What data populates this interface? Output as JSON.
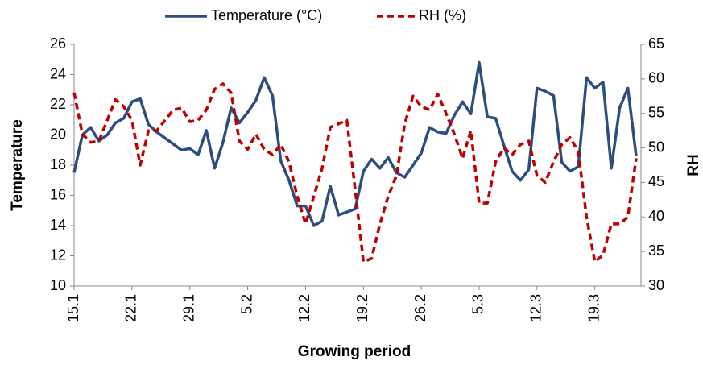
{
  "chart_data": {
    "type": "line",
    "x_label": "Growing period",
    "y_label": "Temperature",
    "y2_label": "RH",
    "categories": [
      "15.1",
      null,
      null,
      null,
      null,
      null,
      null,
      "22.1",
      null,
      null,
      null,
      null,
      null,
      null,
      "29.1",
      null,
      null,
      null,
      null,
      null,
      null,
      "5.2",
      null,
      null,
      null,
      null,
      null,
      null,
      "12.2",
      null,
      null,
      null,
      null,
      null,
      null,
      "19.2",
      null,
      null,
      null,
      null,
      null,
      null,
      "26.2",
      null,
      null,
      null,
      null,
      null,
      null,
      "5.3",
      null,
      null,
      null,
      null,
      null,
      null,
      "12.3",
      null,
      null,
      null,
      null,
      null,
      null,
      "19.3",
      null,
      null,
      null,
      null,
      null
    ],
    "ylim": [
      10,
      26
    ],
    "yticks": [
      10,
      12,
      14,
      16,
      18,
      20,
      22,
      24,
      26
    ],
    "y2lim": [
      30,
      65
    ],
    "y2ticks": [
      30,
      35,
      40,
      45,
      50,
      55,
      60,
      65
    ],
    "legend": "top",
    "series": [
      {
        "name": "Temperature (°C)",
        "color": "#2c4d7e",
        "line_style": "solid",
        "values": [
          17.5,
          20.0,
          20.5,
          19.6,
          20.0,
          20.8,
          21.1,
          22.2,
          22.4,
          20.7,
          20.2,
          19.8,
          19.4,
          19.0,
          19.1,
          18.7,
          20.3,
          17.8,
          19.5,
          21.8,
          20.8,
          21.5,
          22.3,
          23.8,
          22.6,
          18.3,
          17.0,
          15.3,
          15.3,
          14.0,
          14.3,
          16.6,
          14.7,
          14.9,
          15.1,
          17.6,
          18.4,
          17.8,
          18.5,
          17.5,
          17.2,
          18.0,
          18.8,
          20.5,
          20.2,
          20.1,
          21.3,
          22.2,
          21.4,
          24.8,
          21.2,
          21.1,
          19.3,
          17.6,
          17.0,
          17.7,
          23.1,
          22.9,
          22.6,
          18.2,
          17.6,
          17.9,
          23.8,
          23.1,
          23.5,
          17.8,
          21.8,
          23.1,
          18.6
        ]
      },
      {
        "name": "RH (%)",
        "color": "#c00000",
        "line_style": "dashed",
        "axis": "y2",
        "values": [
          58,
          52,
          50.8,
          51,
          54,
          57,
          56,
          54,
          47.5,
          52.5,
          52.5,
          54,
          55.5,
          55.8,
          53.8,
          54,
          55.5,
          58.5,
          59.3,
          58,
          51,
          49.8,
          52,
          49.8,
          49,
          50.5,
          48,
          43,
          39,
          43,
          47,
          53,
          53.5,
          54,
          44,
          33.5,
          34,
          39,
          43,
          46,
          53.5,
          57.5,
          56,
          55.5,
          57.8,
          55,
          52,
          48.5,
          52.5,
          42,
          42,
          48,
          50,
          49,
          50.5,
          51,
          46,
          45,
          48,
          50.5,
          51.5,
          49.5,
          40,
          33.5,
          34.5,
          39,
          39,
          40,
          48.5
        ]
      }
    ]
  }
}
